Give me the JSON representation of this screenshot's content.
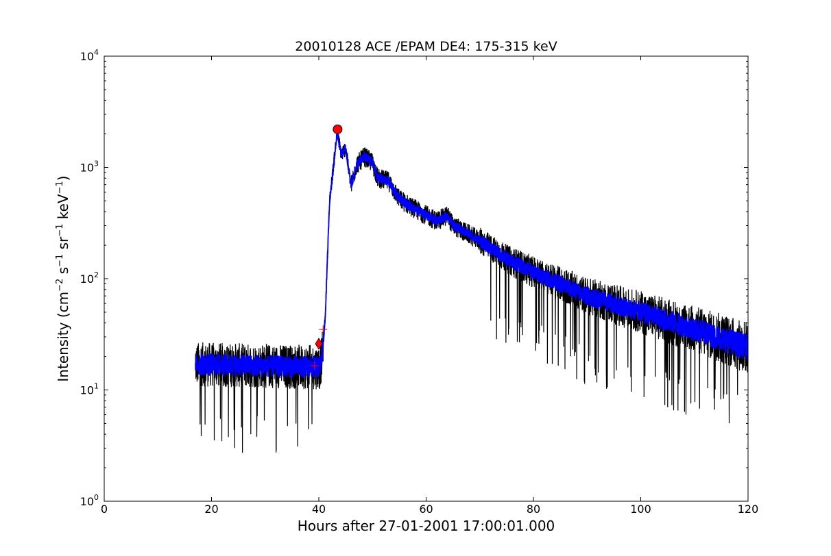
{
  "chart_data": {
    "type": "line",
    "title": "20010128 ACE /EPAM DE4: 175-315 keV",
    "xlabel": "Hours after 27-01-2001 17:00:01.000",
    "ylabel": {
      "parts": [
        "Intensity (cm",
        "−2",
        " s",
        "−1",
        " sr",
        "−1",
        " keV",
        "−1",
        ")"
      ]
    },
    "xlim": [
      0,
      120
    ],
    "ylim": [
      1,
      10000
    ],
    "yscale": "log",
    "x_ticks": [
      "0",
      "20",
      "40",
      "60",
      "80",
      "100",
      "120"
    ],
    "y_ticks": [
      {
        "base": "10",
        "exp": "0"
      },
      {
        "base": "10",
        "exp": "1"
      },
      {
        "base": "10",
        "exp": "2"
      },
      {
        "base": "10",
        "exp": "3"
      },
      {
        "base": "10",
        "exp": "4"
      }
    ],
    "grid": false,
    "series": [
      {
        "role": "raw",
        "color": "#000000",
        "profile": [
          [
            17,
            17
          ],
          [
            40.2,
            16
          ],
          [
            40.6,
            20
          ],
          [
            41.2,
            45
          ],
          [
            42,
            500
          ],
          [
            42.8,
            1100
          ],
          [
            43.4,
            2100
          ],
          [
            44.2,
            1300
          ],
          [
            45,
            1500
          ],
          [
            46,
            680
          ],
          [
            47,
            1050
          ],
          [
            48.5,
            1250
          ],
          [
            50,
            1100
          ],
          [
            51,
            800
          ],
          [
            53,
            750
          ],
          [
            55,
            520
          ],
          [
            58,
            420
          ],
          [
            62,
            330
          ],
          [
            64,
            370
          ],
          [
            65,
            300
          ],
          [
            68,
            250
          ],
          [
            70,
            220
          ],
          [
            75,
            150
          ],
          [
            80,
            115
          ],
          [
            90,
            70
          ],
          [
            100,
            50
          ],
          [
            110,
            35
          ],
          [
            120,
            24
          ]
        ]
      },
      {
        "role": "smoothed",
        "color": "#0000ff",
        "profile": [
          [
            17,
            17
          ],
          [
            40.2,
            16
          ],
          [
            40.6,
            20
          ],
          [
            41.2,
            45
          ],
          [
            42,
            500
          ],
          [
            42.8,
            1100
          ],
          [
            43.4,
            2100
          ],
          [
            44.2,
            1300
          ],
          [
            45,
            1500
          ],
          [
            46,
            680
          ],
          [
            47,
            1050
          ],
          [
            48.5,
            1250
          ],
          [
            50,
            1100
          ],
          [
            51,
            800
          ],
          [
            53,
            750
          ],
          [
            55,
            520
          ],
          [
            58,
            420
          ],
          [
            62,
            330
          ],
          [
            64,
            370
          ],
          [
            65,
            300
          ],
          [
            68,
            250
          ],
          [
            70,
            220
          ],
          [
            75,
            150
          ],
          [
            80,
            115
          ],
          [
            90,
            70
          ],
          [
            100,
            50
          ],
          [
            110,
            35
          ],
          [
            120,
            24
          ]
        ]
      }
    ],
    "markers": [
      {
        "shape": "circle",
        "x": 43.5,
        "y": 2200,
        "color": "#ff0000"
      },
      {
        "shape": "diamond",
        "x": 40,
        "y": 26,
        "color": "#ff0000"
      },
      {
        "shape": "plus",
        "x": 39.2,
        "y": 16.5,
        "color": "#ff0000"
      },
      {
        "shape": "plus",
        "x": 40.8,
        "y": 35,
        "color": "#ff0000"
      }
    ]
  }
}
